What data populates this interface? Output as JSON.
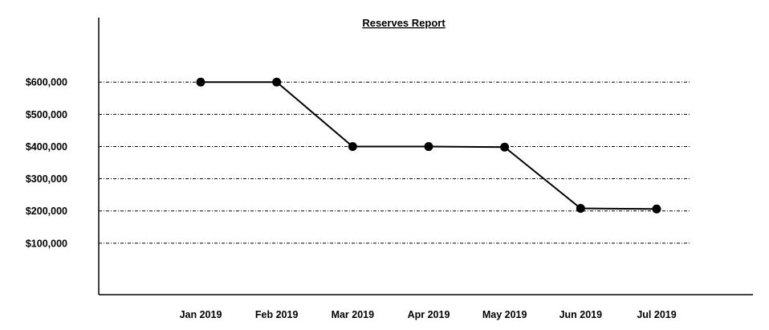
{
  "chart_data": {
    "type": "line",
    "title": "Reserves Report",
    "xlabel": "",
    "ylabel": "",
    "categories": [
      "Jan 2019",
      "Feb 2019",
      "Mar 2019",
      "Apr 2019",
      "May 2019",
      "Jun 2019",
      "Jul 2019"
    ],
    "series": [
      {
        "values": [
          600000,
          600000,
          400000,
          400000,
          398000,
          208000,
          206000
        ]
      }
    ],
    "y_ticks": [
      100000,
      200000,
      300000,
      400000,
      500000,
      600000
    ],
    "y_tick_labels": [
      "$100,000",
      "$200,000",
      "$300,000",
      "$400,000",
      "$500,000",
      "$600,000"
    ],
    "ylim": [
      -60000,
      800000
    ],
    "grid": true,
    "legend": "none",
    "colors": {
      "line": "#000000",
      "marker": "#000000",
      "grid": "#000000",
      "background": "#ffffff"
    }
  }
}
